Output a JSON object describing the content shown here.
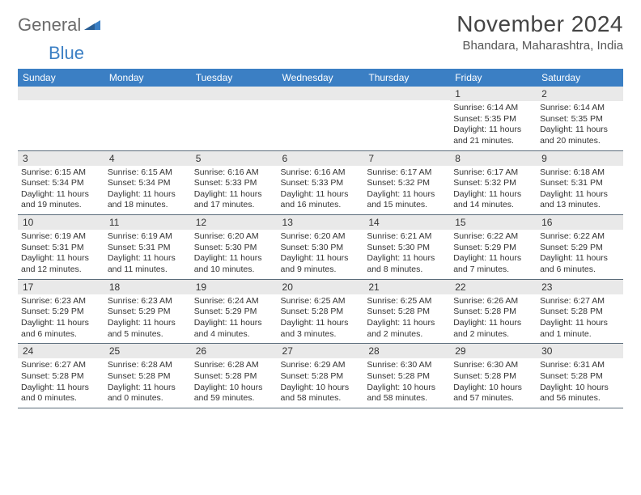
{
  "logo": {
    "word1": "General",
    "word2": "Blue"
  },
  "title": "November 2024",
  "location": "Bhandara, Maharashtra, India",
  "weekdays": [
    "Sunday",
    "Monday",
    "Tuesday",
    "Wednesday",
    "Thursday",
    "Friday",
    "Saturday"
  ],
  "colors": {
    "header_bg": "#3b7fc4",
    "daynum_bg": "#e9e9e9",
    "rule": "#5a6b7a"
  },
  "weeks": [
    [
      {
        "n": "",
        "lines": []
      },
      {
        "n": "",
        "lines": []
      },
      {
        "n": "",
        "lines": []
      },
      {
        "n": "",
        "lines": []
      },
      {
        "n": "",
        "lines": []
      },
      {
        "n": "1",
        "lines": [
          "Sunrise: 6:14 AM",
          "Sunset: 5:35 PM",
          "Daylight: 11 hours and 21 minutes."
        ]
      },
      {
        "n": "2",
        "lines": [
          "Sunrise: 6:14 AM",
          "Sunset: 5:35 PM",
          "Daylight: 11 hours and 20 minutes."
        ]
      }
    ],
    [
      {
        "n": "3",
        "lines": [
          "Sunrise: 6:15 AM",
          "Sunset: 5:34 PM",
          "Daylight: 11 hours and 19 minutes."
        ]
      },
      {
        "n": "4",
        "lines": [
          "Sunrise: 6:15 AM",
          "Sunset: 5:34 PM",
          "Daylight: 11 hours and 18 minutes."
        ]
      },
      {
        "n": "5",
        "lines": [
          "Sunrise: 6:16 AM",
          "Sunset: 5:33 PM",
          "Daylight: 11 hours and 17 minutes."
        ]
      },
      {
        "n": "6",
        "lines": [
          "Sunrise: 6:16 AM",
          "Sunset: 5:33 PM",
          "Daylight: 11 hours and 16 minutes."
        ]
      },
      {
        "n": "7",
        "lines": [
          "Sunrise: 6:17 AM",
          "Sunset: 5:32 PM",
          "Daylight: 11 hours and 15 minutes."
        ]
      },
      {
        "n": "8",
        "lines": [
          "Sunrise: 6:17 AM",
          "Sunset: 5:32 PM",
          "Daylight: 11 hours and 14 minutes."
        ]
      },
      {
        "n": "9",
        "lines": [
          "Sunrise: 6:18 AM",
          "Sunset: 5:31 PM",
          "Daylight: 11 hours and 13 minutes."
        ]
      }
    ],
    [
      {
        "n": "10",
        "lines": [
          "Sunrise: 6:19 AM",
          "Sunset: 5:31 PM",
          "Daylight: 11 hours and 12 minutes."
        ]
      },
      {
        "n": "11",
        "lines": [
          "Sunrise: 6:19 AM",
          "Sunset: 5:31 PM",
          "Daylight: 11 hours and 11 minutes."
        ]
      },
      {
        "n": "12",
        "lines": [
          "Sunrise: 6:20 AM",
          "Sunset: 5:30 PM",
          "Daylight: 11 hours and 10 minutes."
        ]
      },
      {
        "n": "13",
        "lines": [
          "Sunrise: 6:20 AM",
          "Sunset: 5:30 PM",
          "Daylight: 11 hours and 9 minutes."
        ]
      },
      {
        "n": "14",
        "lines": [
          "Sunrise: 6:21 AM",
          "Sunset: 5:30 PM",
          "Daylight: 11 hours and 8 minutes."
        ]
      },
      {
        "n": "15",
        "lines": [
          "Sunrise: 6:22 AM",
          "Sunset: 5:29 PM",
          "Daylight: 11 hours and 7 minutes."
        ]
      },
      {
        "n": "16",
        "lines": [
          "Sunrise: 6:22 AM",
          "Sunset: 5:29 PM",
          "Daylight: 11 hours and 6 minutes."
        ]
      }
    ],
    [
      {
        "n": "17",
        "lines": [
          "Sunrise: 6:23 AM",
          "Sunset: 5:29 PM",
          "Daylight: 11 hours and 6 minutes."
        ]
      },
      {
        "n": "18",
        "lines": [
          "Sunrise: 6:23 AM",
          "Sunset: 5:29 PM",
          "Daylight: 11 hours and 5 minutes."
        ]
      },
      {
        "n": "19",
        "lines": [
          "Sunrise: 6:24 AM",
          "Sunset: 5:29 PM",
          "Daylight: 11 hours and 4 minutes."
        ]
      },
      {
        "n": "20",
        "lines": [
          "Sunrise: 6:25 AM",
          "Sunset: 5:28 PM",
          "Daylight: 11 hours and 3 minutes."
        ]
      },
      {
        "n": "21",
        "lines": [
          "Sunrise: 6:25 AM",
          "Sunset: 5:28 PM",
          "Daylight: 11 hours and 2 minutes."
        ]
      },
      {
        "n": "22",
        "lines": [
          "Sunrise: 6:26 AM",
          "Sunset: 5:28 PM",
          "Daylight: 11 hours and 2 minutes."
        ]
      },
      {
        "n": "23",
        "lines": [
          "Sunrise: 6:27 AM",
          "Sunset: 5:28 PM",
          "Daylight: 11 hours and 1 minute."
        ]
      }
    ],
    [
      {
        "n": "24",
        "lines": [
          "Sunrise: 6:27 AM",
          "Sunset: 5:28 PM",
          "Daylight: 11 hours and 0 minutes."
        ]
      },
      {
        "n": "25",
        "lines": [
          "Sunrise: 6:28 AM",
          "Sunset: 5:28 PM",
          "Daylight: 11 hours and 0 minutes."
        ]
      },
      {
        "n": "26",
        "lines": [
          "Sunrise: 6:28 AM",
          "Sunset: 5:28 PM",
          "Daylight: 10 hours and 59 minutes."
        ]
      },
      {
        "n": "27",
        "lines": [
          "Sunrise: 6:29 AM",
          "Sunset: 5:28 PM",
          "Daylight: 10 hours and 58 minutes."
        ]
      },
      {
        "n": "28",
        "lines": [
          "Sunrise: 6:30 AM",
          "Sunset: 5:28 PM",
          "Daylight: 10 hours and 58 minutes."
        ]
      },
      {
        "n": "29",
        "lines": [
          "Sunrise: 6:30 AM",
          "Sunset: 5:28 PM",
          "Daylight: 10 hours and 57 minutes."
        ]
      },
      {
        "n": "30",
        "lines": [
          "Sunrise: 6:31 AM",
          "Sunset: 5:28 PM",
          "Daylight: 10 hours and 56 minutes."
        ]
      }
    ]
  ]
}
